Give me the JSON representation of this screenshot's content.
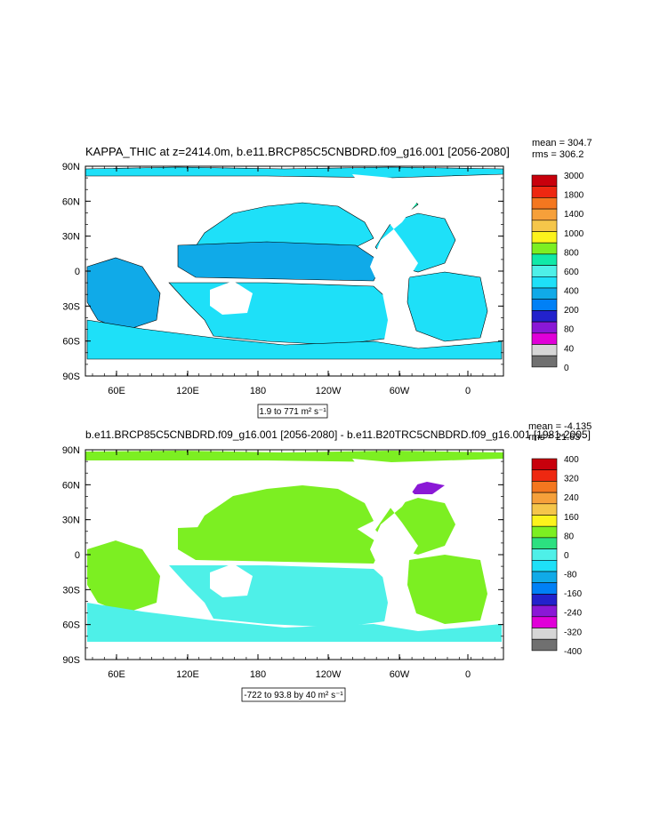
{
  "chart_data": [
    {
      "type": "heatmap",
      "title": "KAPPA_THIC at z=2414.0m, b.e11.BRCP85C5CNBDRD.f09_g16.001 [2056-2080]",
      "stats": [
        "mean = 304.7",
        "rms = 306.2"
      ],
      "xlabel": "",
      "ylabel": "",
      "range_note": "1.9 to 771 m² s⁻¹",
      "xticks": [
        "60E",
        "120E",
        "180",
        "120W",
        "60W",
        "0"
      ],
      "yticks": [
        "90N",
        "60N",
        "30N",
        "0",
        "30S",
        "60S",
        "90S"
      ],
      "colorbar": {
        "labels": [
          "3000",
          "1800",
          "1400",
          "1000",
          "800",
          "600",
          "400",
          "200",
          "80",
          "40",
          "0"
        ],
        "colors": [
          "#c8000c",
          "#ee2811",
          "#f4771f",
          "#f6a03a",
          "#f5c64a",
          "#fcf31c",
          "#7cef22",
          "#10e9a8",
          "#4ef0e8",
          "#1ee0f8",
          "#10aae8",
          "#0080f6",
          "#2222cc",
          "#8a18d6",
          "#e000d8",
          "#d6d6d6",
          "#707070"
        ]
      }
    },
    {
      "type": "heatmap",
      "title": "b.e11.BRCP85C5CNBDRD.f09_g16.001 [2056-2080] - b.e11.B20TRC5CNBDRD.f09_g16.001 [1981-2005]",
      "stats": [
        "mean = -4.135",
        "rms = 21.63"
      ],
      "xlabel": "",
      "ylabel": "",
      "range_note": "-722 to 93.8 by 40 m² s⁻¹",
      "xticks": [
        "60E",
        "120E",
        "180",
        "120W",
        "60W",
        "0"
      ],
      "yticks": [
        "90N",
        "60N",
        "30N",
        "0",
        "30S",
        "60S",
        "90S"
      ],
      "colorbar": {
        "labels": [
          "400",
          "320",
          "240",
          "160",
          "80",
          "0",
          "-80",
          "-160",
          "-240",
          "-320",
          "-400"
        ],
        "colors": [
          "#c8000c",
          "#ee2811",
          "#f4771f",
          "#f6a03a",
          "#f5c64a",
          "#fcf31c",
          "#7cef22",
          "#2ce080",
          "#4ef0e8",
          "#1ee0f8",
          "#10aae8",
          "#0080f6",
          "#2222cc",
          "#8a18d6",
          "#e000d8",
          "#d6d6d6",
          "#707070"
        ]
      }
    }
  ]
}
